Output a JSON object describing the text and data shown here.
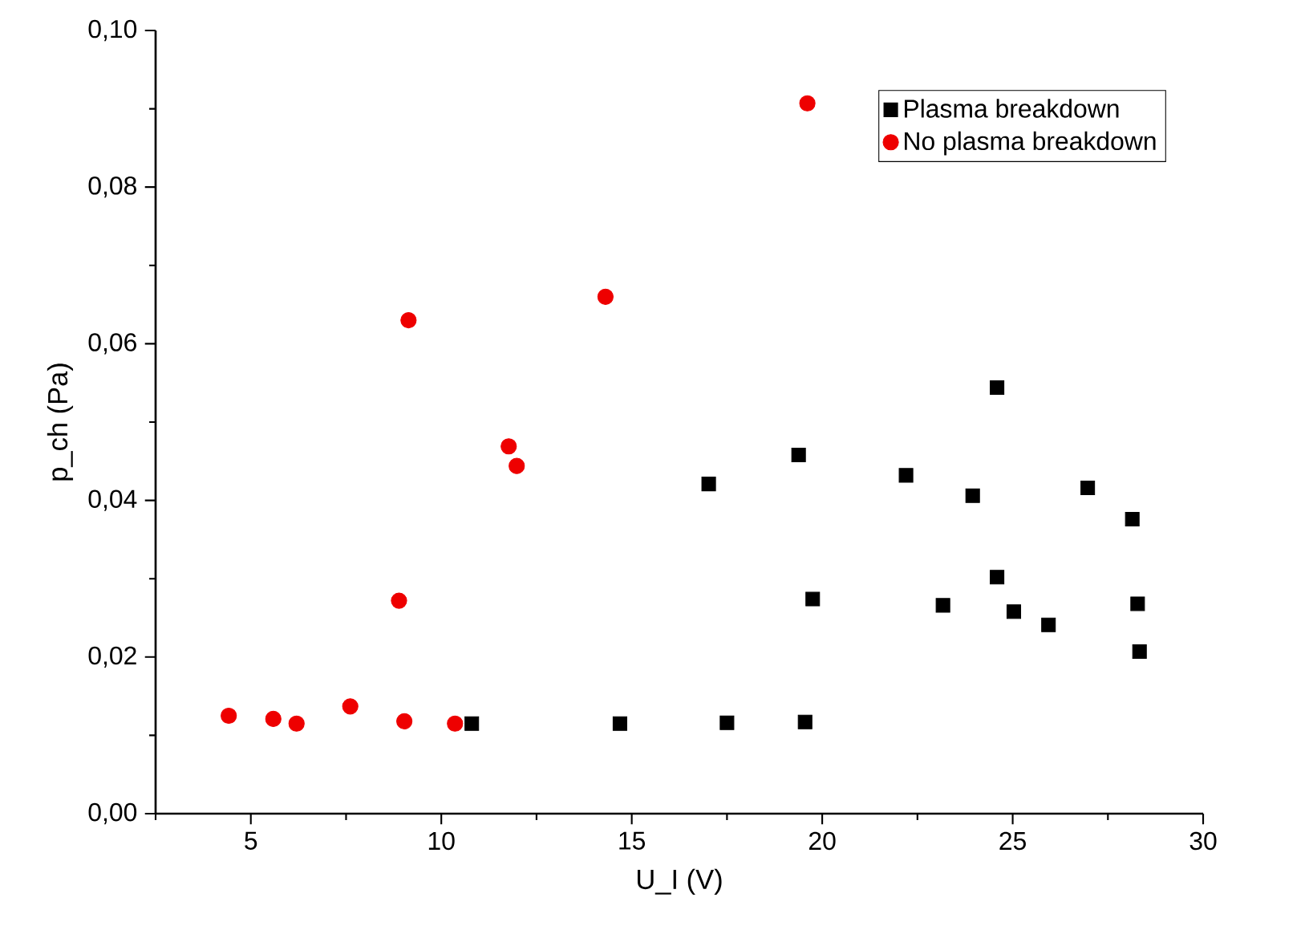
{
  "chart_data": {
    "type": "scatter",
    "xlabel": "U_I (V)",
    "ylabel": "p_ch (Pa)",
    "xlim": [
      2.5,
      30
    ],
    "ylim": [
      0,
      0.1
    ],
    "xticks": [
      5,
      10,
      15,
      20,
      25,
      30,
      {
        "value": 2.5,
        "label": null
      },
      {
        "value": 7.5,
        "label": null
      },
      {
        "value": 12.5,
        "label": null
      },
      {
        "value": 17.5,
        "label": null
      },
      {
        "value": 22.5,
        "label": null
      },
      {
        "value": 27.5,
        "label": null
      }
    ],
    "yticks": [
      {
        "value": 0,
        "label": "0,00"
      },
      {
        "value": 0.02,
        "label": "0,02"
      },
      {
        "value": 0.04,
        "label": "0,04"
      },
      {
        "value": 0.06,
        "label": "0,06"
      },
      {
        "value": 0.08,
        "label": "0,08"
      },
      {
        "value": 0.1,
        "label": "0,10"
      },
      {
        "value": 0.01,
        "label": null
      },
      {
        "value": 0.03,
        "label": null
      },
      {
        "value": 0.05,
        "label": null
      },
      {
        "value": 0.07,
        "label": null
      },
      {
        "value": 0.09,
        "label": null
      }
    ],
    "legend": "top right",
    "grid": false,
    "series": [
      {
        "name": "Plasma breakdown",
        "color": "#000000",
        "marker": "square",
        "x": [
          10.8,
          14.69,
          17.5,
          19.55,
          17.02,
          19.38,
          19.75,
          22.2,
          23.17,
          23.95,
          24.59,
          24.59,
          25.03,
          25.94,
          26.97,
          28.14,
          28.28,
          28.33
        ],
        "values": [
          0.0115,
          0.0115,
          0.0116,
          0.0117,
          0.0421,
          0.0458,
          0.0274,
          0.0432,
          0.0266,
          0.0406,
          0.0544,
          0.0302,
          0.0258,
          0.0241,
          0.0416,
          0.0376,
          0.0268,
          0.0207
        ]
      },
      {
        "name": "No plasma breakdown",
        "color": "#ee0000",
        "marker": "circle",
        "x": [
          4.42,
          5.59,
          6.2,
          7.61,
          8.89,
          9.03,
          9.14,
          10.36,
          11.77,
          11.98,
          14.31,
          19.61
        ],
        "values": [
          0.0125,
          0.0121,
          0.0115,
          0.0137,
          0.0272,
          0.0118,
          0.063,
          0.0115,
          0.0469,
          0.0444,
          0.066,
          0.0907
        ]
      }
    ]
  }
}
